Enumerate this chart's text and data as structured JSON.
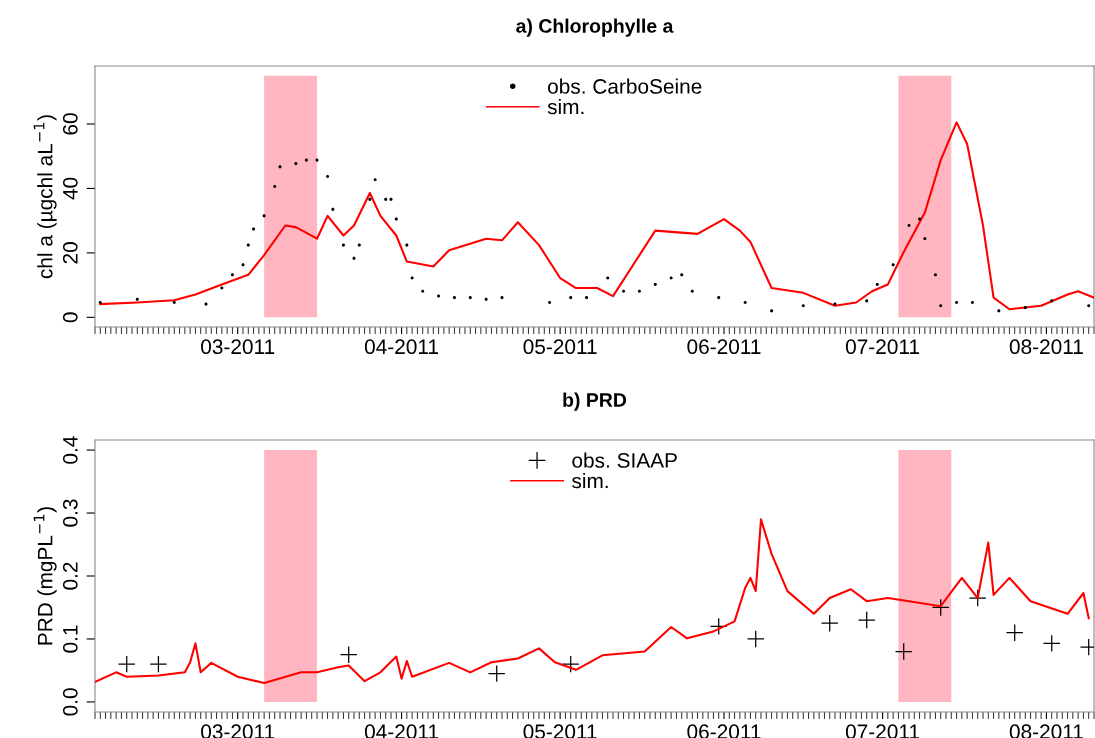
{
  "chart_data": [
    {
      "type": "scatter",
      "title": "a) Chlorophylle a",
      "ylabel": "chl a (µgchl aL$^{−1}$)",
      "xlim": [
        "2011-02-02",
        "2011-08-10"
      ],
      "xticks": [
        {
          "value": "2011-03-01",
          "label": "03-2011"
        },
        {
          "value": "2011-04-01",
          "label": "04-2011"
        },
        {
          "value": "2011-05-01",
          "label": "05-2011"
        },
        {
          "value": "2011-06-01",
          "label": "06-2011"
        },
        {
          "value": "2011-07-01",
          "label": "07-2011"
        },
        {
          "value": "2011-08-01",
          "label": "08-2011"
        }
      ],
      "ylim": [
        -3,
        78
      ],
      "yticks": [
        0,
        20,
        40,
        60
      ],
      "grid": false,
      "legend": "top",
      "bands": [
        {
          "axis": "x",
          "from": "2011-03-06",
          "to": "2011-03-16",
          "color": "#ffb6c1"
        },
        {
          "axis": "x",
          "from": "2011-07-04",
          "to": "2011-07-14",
          "color": "#ffb6c1"
        }
      ],
      "series": [
        {
          "name": "obs. CarboSeine",
          "type": "scatter",
          "marker": "circle",
          "color": "#000000",
          "x": [
            "2011-02-03",
            "2011-02-10",
            "2011-02-17",
            "2011-02-23",
            "2011-02-26",
            "2011-02-28",
            "2011-03-02",
            "2011-03-03",
            "2011-03-04",
            "2011-03-06",
            "2011-03-08",
            "2011-03-09",
            "2011-03-12",
            "2011-03-14",
            "2011-03-16",
            "2011-03-18",
            "2011-03-19",
            "2011-03-21",
            "2011-03-23",
            "2011-03-24",
            "2011-03-26",
            "2011-03-27",
            "2011-03-29",
            "2011-03-30",
            "2011-03-31",
            "2011-04-02",
            "2011-04-03",
            "2011-04-05",
            "2011-04-08",
            "2011-04-11",
            "2011-04-14",
            "2011-04-17",
            "2011-04-20",
            "2011-04-29",
            "2011-05-03",
            "2011-05-06",
            "2011-05-10",
            "2011-05-13",
            "2011-05-16",
            "2011-05-19",
            "2011-05-22",
            "2011-05-24",
            "2011-05-26",
            "2011-05-31",
            "2011-06-05",
            "2011-06-10",
            "2011-06-16",
            "2011-06-22",
            "2011-06-28",
            "2011-06-30",
            "2011-07-03",
            "2011-07-06",
            "2011-07-08",
            "2011-07-09",
            "2011-07-11",
            "2011-07-12",
            "2011-07-15",
            "2011-07-18",
            "2011-07-23",
            "2011-07-28",
            "2011-08-02",
            "2011-08-09"
          ],
          "values": [
            4.6,
            5.6,
            4.6,
            4.1,
            9.1,
            13.2,
            16.3,
            22.4,
            27.4,
            31.5,
            40.6,
            46.7,
            47.7,
            48.8,
            48.8,
            43.7,
            33.5,
            22.4,
            18.3,
            22.4,
            36.6,
            42.7,
            36.6,
            36.6,
            30.5,
            22.4,
            12.2,
            8.1,
            6.6,
            6.1,
            6.1,
            5.6,
            6.1,
            4.6,
            6.1,
            6.1,
            12.2,
            8.1,
            8.1,
            10.2,
            12.2,
            13.2,
            8.1,
            6.1,
            4.6,
            2.0,
            3.6,
            4.1,
            5.1,
            10.2,
            16.3,
            28.5,
            30.5,
            24.4,
            13.2,
            3.6,
            4.6,
            4.6,
            2.0,
            3.0,
            5.1,
            3.6
          ]
        },
        {
          "name": "sim.",
          "type": "line",
          "marker": "none",
          "line_style": "solid",
          "color": "#ff0000",
          "x": [
            "2011-02-03",
            "2011-02-10",
            "2011-02-17",
            "2011-02-21",
            "2011-02-26",
            "2011-03-03",
            "2011-03-06",
            "2011-03-10",
            "2011-03-12",
            "2011-03-16",
            "2011-03-18",
            "2011-03-21",
            "2011-03-23",
            "2011-03-26",
            "2011-03-28",
            "2011-03-31",
            "2011-04-02",
            "2011-04-07",
            "2011-04-10",
            "2011-04-17",
            "2011-04-20",
            "2011-04-23",
            "2011-04-27",
            "2011-05-01",
            "2011-05-04",
            "2011-05-08",
            "2011-05-11",
            "2011-05-19",
            "2011-05-27",
            "2011-06-01",
            "2011-06-04",
            "2011-06-06",
            "2011-06-10",
            "2011-06-16",
            "2011-06-22",
            "2011-06-26",
            "2011-06-29",
            "2011-07-02",
            "2011-07-05",
            "2011-07-09",
            "2011-07-12",
            "2011-07-15",
            "2011-07-17",
            "2011-07-20",
            "2011-07-22",
            "2011-07-25",
            "2011-07-31",
            "2011-08-05",
            "2011-08-07",
            "2011-08-10"
          ],
          "values": [
            4.1,
            4.6,
            5.3,
            7.1,
            10.2,
            13.2,
            19.3,
            28.5,
            28.0,
            24.4,
            31.5,
            25.4,
            28.5,
            38.6,
            31.5,
            25.4,
            17.3,
            15.8,
            20.8,
            24.4,
            23.9,
            29.5,
            22.4,
            12.2,
            9.1,
            9.1,
            6.6,
            26.9,
            25.9,
            30.5,
            26.9,
            23.4,
            9.1,
            7.6,
            3.6,
            4.6,
            8.1,
            10.2,
            20.3,
            32.5,
            48.8,
            60.5,
            53.8,
            28.5,
            6.1,
            2.5,
            3.6,
            7.1,
            8.1,
            6.1
          ]
        }
      ]
    },
    {
      "type": "scatter",
      "title": "b) PRD",
      "ylabel": "PRD (mgPL$^{−1}$)",
      "xlim": [
        "2011-02-02",
        "2011-08-10"
      ],
      "xticks": [
        {
          "value": "2011-03-01",
          "label": "03-2011"
        },
        {
          "value": "2011-04-01",
          "label": "04-2011"
        },
        {
          "value": "2011-05-01",
          "label": "05-2011"
        },
        {
          "value": "2011-06-01",
          "label": "06-2011"
        },
        {
          "value": "2011-07-01",
          "label": "07-2011"
        },
        {
          "value": "2011-08-01",
          "label": "08-2011"
        }
      ],
      "ylim": [
        -0.016,
        0.416
      ],
      "yticks": [
        {
          "value": 0,
          "label": "0.0"
        },
        0.1,
        0.2,
        0.3,
        0.4
      ],
      "grid": false,
      "legend": "top",
      "bands": [
        {
          "axis": "x",
          "from": "2011-03-06",
          "to": "2011-03-16",
          "color": "#ffb6c1"
        },
        {
          "axis": "x",
          "from": "2011-07-04",
          "to": "2011-07-14",
          "color": "#ffb6c1"
        }
      ],
      "series": [
        {
          "name": "obs. SIAAP",
          "type": "scatter",
          "marker": "cross",
          "color": "#000000",
          "x": [
            "2011-02-08",
            "2011-02-14",
            "2011-03-22",
            "2011-04-19",
            "2011-05-03",
            "2011-05-31",
            "2011-06-07",
            "2011-06-21",
            "2011-06-28",
            "2011-07-05",
            "2011-07-12",
            "2011-07-19",
            "2011-07-26",
            "2011-08-02",
            "2011-08-09"
          ],
          "values": [
            0.06,
            0.06,
            0.075,
            0.045,
            0.06,
            0.12,
            0.1,
            0.125,
            0.13,
            0.08,
            0.15,
            0.165,
            0.11,
            0.093,
            0.087
          ]
        },
        {
          "name": "sim.",
          "type": "line",
          "marker": "none",
          "line_style": "solid",
          "color": "#ff0000",
          "x": [
            "2011-02-02",
            "2011-02-06",
            "2011-02-08",
            "2011-02-14",
            "2011-02-19",
            "2011-02-20",
            "2011-02-21",
            "2011-02-22",
            "2011-02-24",
            "2011-03-01",
            "2011-03-06",
            "2011-03-13",
            "2011-03-16",
            "2011-03-20",
            "2011-03-22",
            "2011-03-25",
            "2011-03-28",
            "2011-03-31",
            "2011-04-01",
            "2011-04-02",
            "2011-04-03",
            "2011-04-10",
            "2011-04-14",
            "2011-04-18",
            "2011-04-23",
            "2011-04-27",
            "2011-04-30",
            "2011-05-04",
            "2011-05-09",
            "2011-05-17",
            "2011-05-22",
            "2011-05-25",
            "2011-05-30",
            "2011-06-03",
            "2011-06-05",
            "2011-06-06",
            "2011-06-07",
            "2011-06-08",
            "2011-06-10",
            "2011-06-13",
            "2011-06-18",
            "2011-06-21",
            "2011-06-25",
            "2011-06-28",
            "2011-07-02",
            "2011-07-06",
            "2011-07-12",
            "2011-07-16",
            "2011-07-19",
            "2011-07-21",
            "2011-07-22",
            "2011-07-25",
            "2011-07-29",
            "2011-08-05",
            "2011-08-08",
            "2011-08-09"
          ],
          "values": [
            0.032,
            0.047,
            0.04,
            0.042,
            0.047,
            0.063,
            0.093,
            0.047,
            0.062,
            0.04,
            0.03,
            0.047,
            0.047,
            0.055,
            0.058,
            0.033,
            0.047,
            0.072,
            0.037,
            0.065,
            0.04,
            0.062,
            0.047,
            0.063,
            0.069,
            0.085,
            0.063,
            0.051,
            0.074,
            0.08,
            0.119,
            0.101,
            0.112,
            0.128,
            0.181,
            0.197,
            0.176,
            0.29,
            0.235,
            0.176,
            0.14,
            0.165,
            0.179,
            0.16,
            0.165,
            0.16,
            0.152,
            0.197,
            0.165,
            0.253,
            0.17,
            0.197,
            0.16,
            0.14,
            0.173,
            0.133
          ]
        }
      ]
    }
  ]
}
